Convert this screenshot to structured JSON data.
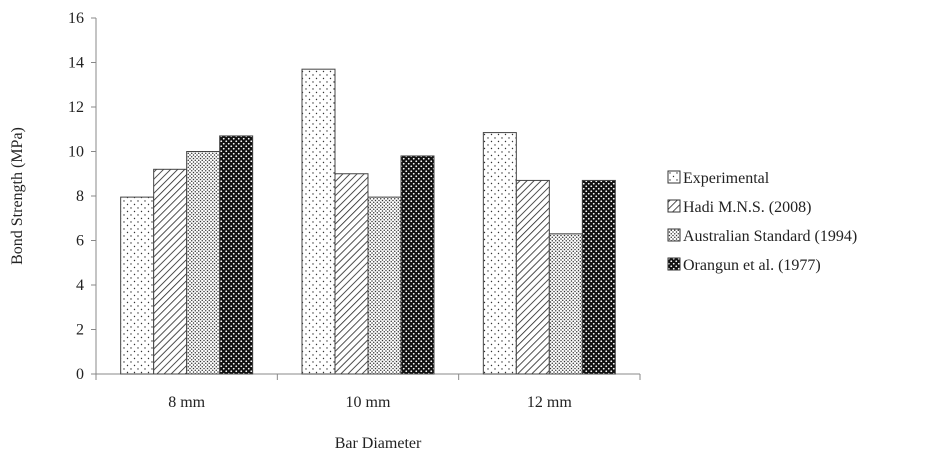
{
  "chart_data": {
    "type": "bar",
    "xlabel": "Bar Diameter",
    "ylabel": "Bond Strength (MPa)",
    "ylim": [
      0,
      16
    ],
    "yticks": [
      0,
      2,
      4,
      6,
      8,
      10,
      12,
      14,
      16
    ],
    "categories": [
      "8 mm",
      "10 mm",
      "12 mm"
    ],
    "grid": false,
    "legend_position": "right",
    "series": [
      {
        "name": "Experimental",
        "values": [
          7.95,
          13.7,
          10.85
        ],
        "pattern": "sparse-dots"
      },
      {
        "name": "Hadi M.N.S. (2008)",
        "values": [
          9.2,
          9.0,
          8.7
        ],
        "pattern": "diagonal-hatch"
      },
      {
        "name": "Australian Standard (1994)",
        "values": [
          10.0,
          7.95,
          6.3
        ],
        "pattern": "dense-dots"
      },
      {
        "name": "Orangun et al. (1977)",
        "values": [
          10.7,
          9.8,
          8.7
        ],
        "pattern": "checker"
      }
    ]
  }
}
